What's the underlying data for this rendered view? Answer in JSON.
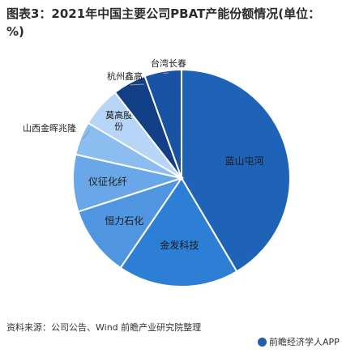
{
  "title": "图表3：2021年中国主要公司PBAT产能份额情况(单位：%)",
  "source": "资料来源：公司公告、Wind 前瞻产业研究院整理",
  "logo_text": "前瞻经济学人APP",
  "chart_data": {
    "type": "pie",
    "title": "图表3：2021年中国主要公司PBAT产能份额情况(单位：%)",
    "unit": "%",
    "legend": "none (labels on/next to slices)",
    "slices": [
      {
        "label": "蓝山屯河",
        "value": 41.5,
        "color": "#1f63b8"
      },
      {
        "label": "金发科技",
        "value": 18.0,
        "color": "#2d7fd6"
      },
      {
        "label": "恒力石化",
        "value": 10.5,
        "color": "#4f95e0"
      },
      {
        "label": "仪征化纤",
        "value": 8.5,
        "color": "#6aa7e8"
      },
      {
        "label": "山西金晖兆隆",
        "value": 5.0,
        "color": "#8cbdf0"
      },
      {
        "label": "莫高股份",
        "value": 6.0,
        "color": "#b7d5f6"
      },
      {
        "label": "杭州鑫高",
        "value": 5.0,
        "color": "#123f86"
      },
      {
        "label": "台湾长春",
        "value": 5.5,
        "color": "#1a52a6"
      }
    ]
  }
}
